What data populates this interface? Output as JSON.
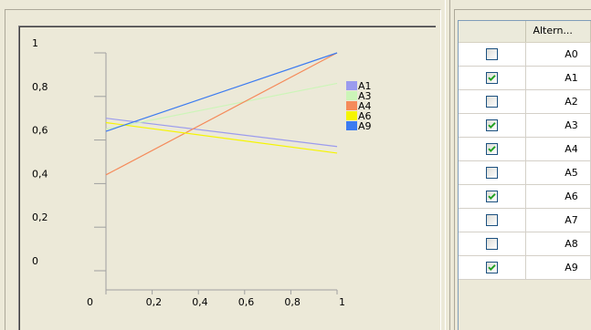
{
  "table": {
    "header_check": "",
    "header_name": "Altern...",
    "rows": [
      {
        "label": "A0",
        "checked": false
      },
      {
        "label": "A1",
        "checked": true
      },
      {
        "label": "A2",
        "checked": false
      },
      {
        "label": "A3",
        "checked": true
      },
      {
        "label": "A4",
        "checked": true
      },
      {
        "label": "A5",
        "checked": false
      },
      {
        "label": "A6",
        "checked": true
      },
      {
        "label": "A7",
        "checked": false
      },
      {
        "label": "A8",
        "checked": false
      },
      {
        "label": "A9",
        "checked": true
      }
    ]
  },
  "chart_data": {
    "type": "line",
    "xlim": [
      0,
      1
    ],
    "ylim": [
      0,
      1
    ],
    "x_ticks": [
      "0",
      "0,2",
      "0,4",
      "0,6",
      "0,8",
      "1"
    ],
    "y_ticks": [
      "0",
      "0,2",
      "0,4",
      "0,6",
      "0,8",
      "1"
    ],
    "legend_position": "right",
    "series": [
      {
        "name": "A1",
        "color": "#9B9BEE",
        "x": [
          0,
          1
        ],
        "y": [
          0.7,
          0.57
        ]
      },
      {
        "name": "A3",
        "color": "#CCF5B8",
        "x": [
          0,
          1
        ],
        "y": [
          0.65,
          0.86
        ]
      },
      {
        "name": "A4",
        "color": "#F58A5A",
        "x": [
          0,
          1
        ],
        "y": [
          0.44,
          1.0
        ]
      },
      {
        "name": "A6",
        "color": "#F5F500",
        "x": [
          0,
          1
        ],
        "y": [
          0.68,
          0.54
        ]
      },
      {
        "name": "A9",
        "color": "#3C7BF0",
        "x": [
          0,
          1
        ],
        "y": [
          0.64,
          1.0
        ]
      }
    ]
  }
}
